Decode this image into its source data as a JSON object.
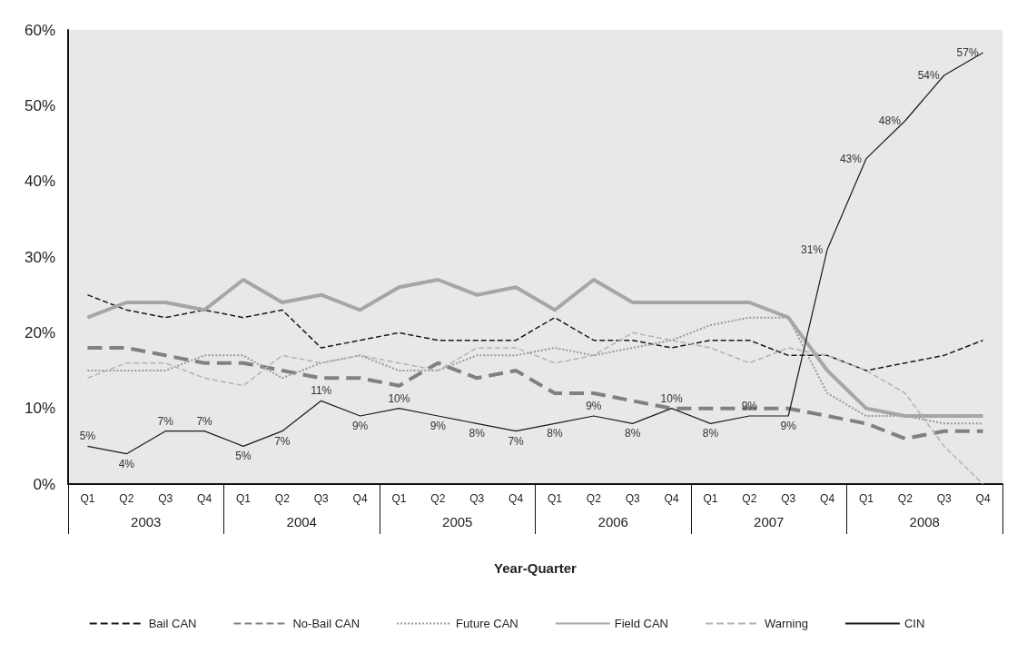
{
  "chart_data": {
    "type": "line",
    "xlabel": "Year-Quarter",
    "categories": [
      "Q1",
      "Q2",
      "Q3",
      "Q4",
      "Q1",
      "Q2",
      "Q3",
      "Q4",
      "Q1",
      "Q2",
      "Q3",
      "Q4",
      "Q1",
      "Q2",
      "Q3",
      "Q4",
      "Q1",
      "Q2",
      "Q3",
      "Q4",
      "Q1",
      "Q2",
      "Q3",
      "Q4"
    ],
    "annotations": [
      "2003",
      "2004",
      "2005",
      "2006",
      "2007",
      "2008"
    ],
    "series": [
      {
        "name": "Bail CAN",
        "color": "#1a1a1a",
        "line_style": "dashed",
        "values": [
          25,
          23,
          22,
          23,
          22,
          23,
          18,
          19,
          20,
          19,
          19,
          19,
          22,
          19,
          19,
          18,
          19,
          19,
          17,
          17,
          15,
          16,
          17,
          19
        ]
      },
      {
        "name": "No-Bail CAN",
        "color": "#808080",
        "line_style": "dashed",
        "values": [
          18,
          18,
          17,
          16,
          16,
          15,
          14,
          14,
          13,
          16,
          14,
          15,
          12,
          12,
          11,
          10,
          10,
          10,
          10,
          9,
          8,
          6,
          7,
          7
        ]
      },
      {
        "name": "Future CAN",
        "color": "#999999",
        "line_style": "dotted",
        "values": [
          15,
          15,
          15,
          17,
          17,
          14,
          16,
          17,
          15,
          15,
          17,
          17,
          18,
          17,
          18,
          19,
          21,
          22,
          22,
          12,
          9,
          9,
          8,
          8
        ]
      },
      {
        "name": "Field CAN",
        "color": "#a6a6a6",
        "line_style": "solid",
        "values": [
          22,
          24,
          24,
          23,
          27,
          24,
          25,
          23,
          26,
          27,
          25,
          26,
          23,
          27,
          24,
          24,
          24,
          24,
          22,
          15,
          10,
          9,
          9,
          9
        ]
      },
      {
        "name": "Warning",
        "color": "#b3b3b3",
        "line_style": "dashed",
        "values": [
          14,
          16,
          16,
          14,
          13,
          17,
          16,
          17,
          16,
          15,
          18,
          18,
          16,
          17,
          20,
          19,
          18,
          16,
          18,
          17,
          15,
          12,
          5,
          0
        ]
      },
      {
        "name": "CIN",
        "color": "#1a1a1a",
        "line_style": "solid",
        "values": [
          5,
          4,
          7,
          7,
          5,
          7,
          11,
          9,
          10,
          9,
          8,
          7,
          8,
          9,
          8,
          10,
          8,
          9,
          9,
          31,
          43,
          48,
          54,
          57
        ],
        "value_labels": [
          "5%",
          "4%",
          "7%",
          "7%",
          "5%",
          "7%",
          "11%",
          "9%",
          "10%",
          "9%",
          "8%",
          "7%",
          "8%",
          "9%",
          "8%",
          "10%",
          "8%",
          "9%",
          "9%",
          "31%",
          "43%",
          "48%",
          "54%",
          "57%"
        ]
      }
    ],
    "ylim": [
      0,
      60
    ],
    "yticks": [
      {
        "value": 0,
        "label": "0%"
      },
      {
        "value": 10,
        "label": "10%"
      },
      {
        "value": 20,
        "label": "20%"
      },
      {
        "value": 30,
        "label": "30%"
      },
      {
        "value": 40,
        "label": "40%"
      },
      {
        "value": 50,
        "label": "50%"
      },
      {
        "value": 60,
        "label": "60%"
      }
    ],
    "grid": false,
    "legend": "bottom",
    "marker": "none"
  }
}
